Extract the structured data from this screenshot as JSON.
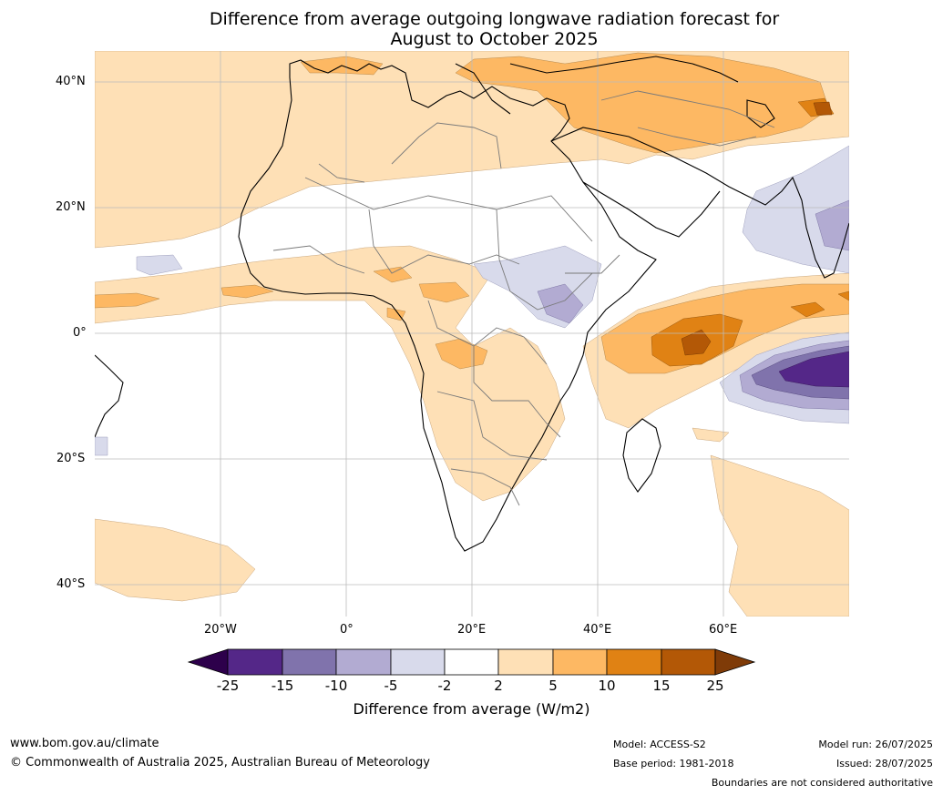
{
  "title": {
    "line1": "Difference from average outgoing longwave radiation forecast for",
    "line2": "August to October 2025"
  },
  "axes": {
    "lat_labels": [
      "40°N",
      "20°N",
      "0°",
      "20°S",
      "40°S"
    ],
    "lon_labels": [
      "20°W",
      "0°",
      "20°E",
      "40°E",
      "60°E"
    ],
    "lat_range": [
      -45,
      45
    ],
    "lon_range": [
      -40,
      80
    ],
    "gridlines": true
  },
  "colorbar": {
    "ticks": [
      "-25",
      "-15",
      "-10",
      "-5",
      "-2",
      "2",
      "5",
      "10",
      "15",
      "25"
    ],
    "label": "Difference from average (W/m2)",
    "colors": {
      "below_min": "#2d004b",
      "n25_n15": "#542788",
      "n15_n10": "#8073ac",
      "n10_n5": "#b2abd2",
      "n5_n2": "#d8daeb",
      "n2_2": "#ffffff",
      "p2_5": "#fee0b6",
      "p5_10": "#fdb863",
      "p10_15": "#e08214",
      "p15_25": "#b35806",
      "above_max": "#7f3b08"
    }
  },
  "footer": {
    "url": "www.bom.gov.au/climate",
    "copyright": "© Commonwealth of Australia 2025, Australian Bureau of Meteorology",
    "model": "Model: ACCESS-S2",
    "base_period": "Base period: 1981-2018",
    "model_run": "Model run: 26/07/2025",
    "issued": "Issued: 28/07/2025",
    "disclaimer": "Boundaries are not considered authoritative"
  }
}
